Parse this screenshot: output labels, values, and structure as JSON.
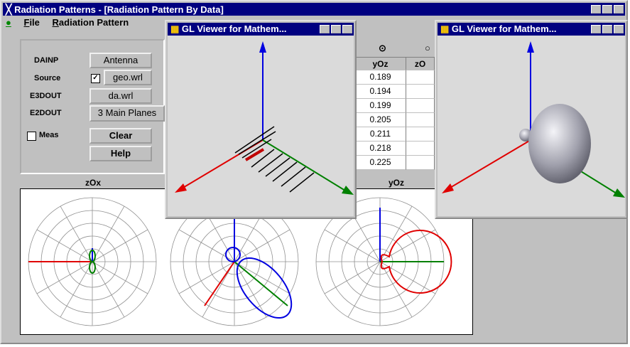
{
  "main_window": {
    "title": "Radiation Patterns - [Radiation Pattern By Data]",
    "menu": [
      "File",
      "Radiation Pattern"
    ]
  },
  "panel": {
    "labels": [
      "DAINP",
      "Source",
      "E3DOUT",
      "E2DOUT",
      "Meas"
    ],
    "buttons": [
      "Antenna",
      "geo.wrl",
      "da.wrl",
      "3 Main Planes",
      "Clear",
      "Help"
    ]
  },
  "plots": {
    "labels": [
      "zOx",
      "yOz"
    ]
  },
  "table": {
    "headers": [
      "yOz",
      "zO"
    ],
    "rows": [
      "0.189",
      "0.194",
      "0.199",
      "0.205",
      "0.211",
      "0.218",
      "0.225"
    ]
  },
  "viewers": [
    {
      "title": "GL Viewer for Mathem..."
    },
    {
      "title": "GL Viewer for Mathem..."
    }
  ]
}
